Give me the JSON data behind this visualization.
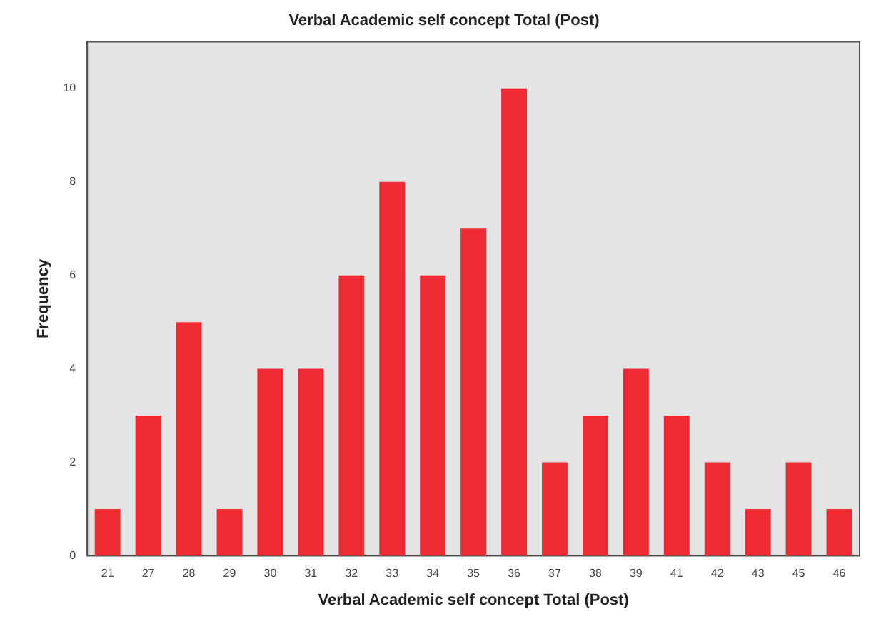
{
  "chart_data": {
    "type": "bar",
    "title": "Verbal Academic self concept Total (Post)",
    "xlabel": "Verbal Academic self concept Total (Post)",
    "ylabel": "Frequency",
    "categories": [
      "21",
      "27",
      "28",
      "29",
      "30",
      "31",
      "32",
      "33",
      "34",
      "35",
      "36",
      "37",
      "38",
      "39",
      "41",
      "42",
      "43",
      "45",
      "46"
    ],
    "values": [
      1,
      3,
      5,
      1,
      4,
      4,
      6,
      8,
      6,
      7,
      10,
      2,
      3,
      4,
      3,
      2,
      1,
      2,
      1
    ],
    "color": "#ee2a32",
    "ylim": [
      0,
      11
    ],
    "yticks": [
      0,
      2,
      4,
      6,
      8,
      10
    ],
    "grid": false,
    "legend": false
  }
}
